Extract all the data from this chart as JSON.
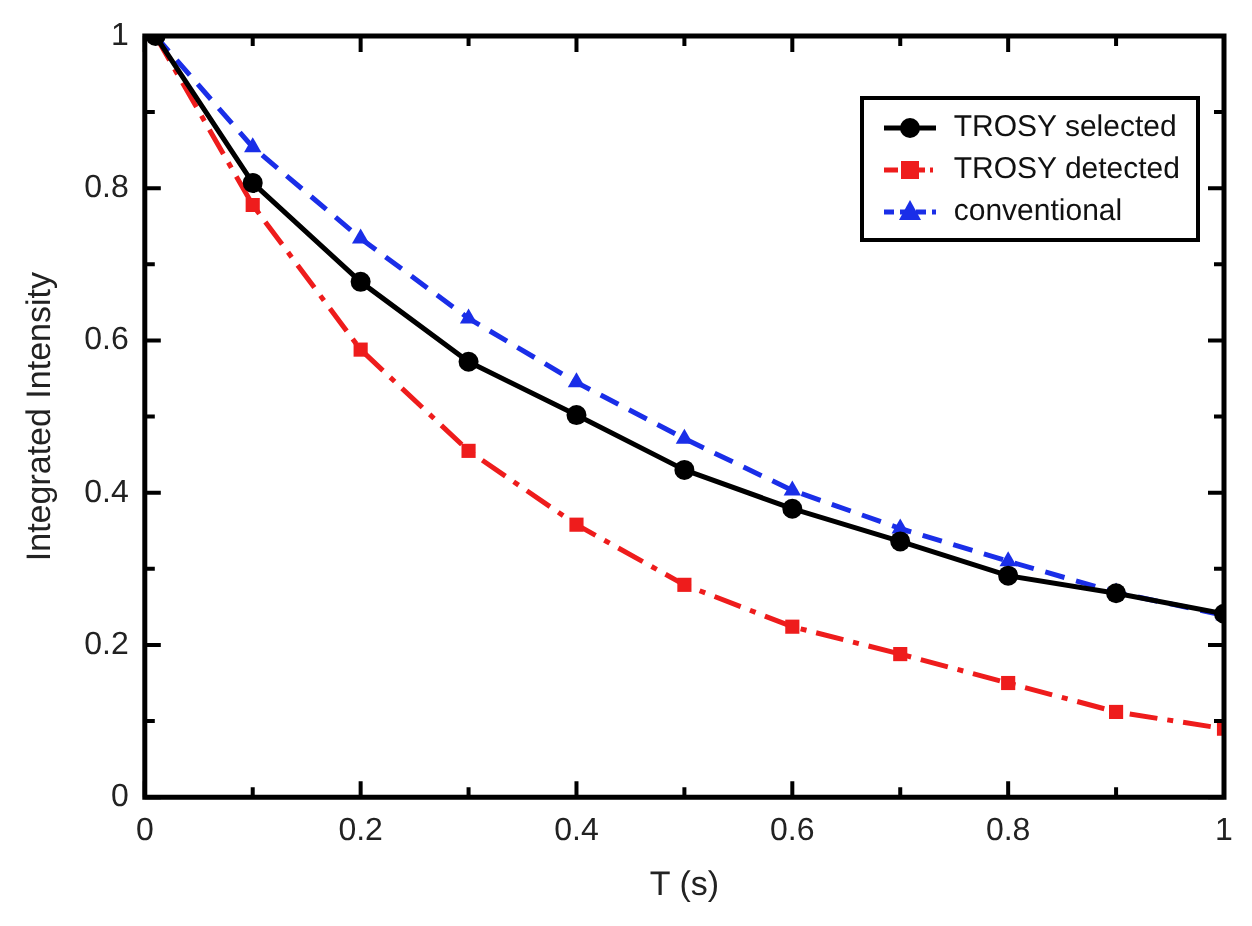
{
  "chart_data": {
    "type": "line",
    "xlabel": "T (s)",
    "ylabel": "Integrated Intensity",
    "x": [
      0.01,
      0.1,
      0.2,
      0.3,
      0.4,
      0.5,
      0.6,
      0.7,
      0.8,
      0.9,
      1.0
    ],
    "series": [
      {
        "name": "TROSY selected",
        "color": "#000000",
        "marker": "circle",
        "line_style": "solid",
        "values": [
          1,
          0.807,
          0.677,
          0.572,
          0.502,
          0.43,
          0.379,
          0.336,
          0.291,
          0.268,
          0.241
        ]
      },
      {
        "name": "TROSY detected",
        "color": "#ee1c1c",
        "marker": "square",
        "line_style": "dashdot",
        "values": [
          1,
          0.778,
          0.588,
          0.455,
          0.358,
          0.279,
          0.224,
          0.188,
          0.15,
          0.112,
          0.09
        ]
      },
      {
        "name": "conventional",
        "color": "#1a2ee8",
        "marker": "triangle",
        "line_style": "dashed",
        "values": [
          1,
          0.854,
          0.734,
          0.629,
          0.545,
          0.471,
          0.403,
          0.353,
          0.31,
          0.269,
          0.239
        ]
      }
    ],
    "xlim": [
      0,
      1
    ],
    "xticks": [
      0,
      {
        "value": 0.1,
        "label": null
      },
      0.2,
      {
        "value": 0.3,
        "label": null
      },
      0.4,
      {
        "value": 0.5,
        "label": null
      },
      0.6,
      {
        "value": 0.7,
        "label": null
      },
      0.8,
      {
        "value": 0.9,
        "label": null
      },
      1
    ],
    "ylim": [
      0,
      1
    ],
    "yticks": [
      0,
      {
        "value": 0.1,
        "label": null
      },
      0.2,
      {
        "value": 0.3,
        "label": null
      },
      0.4,
      {
        "value": 0.5,
        "label": null
      },
      0.6,
      {
        "value": 0.7,
        "label": null
      },
      0.8,
      {
        "value": 0.9,
        "label": null
      },
      1
    ],
    "grid": false,
    "legend": "top right"
  }
}
